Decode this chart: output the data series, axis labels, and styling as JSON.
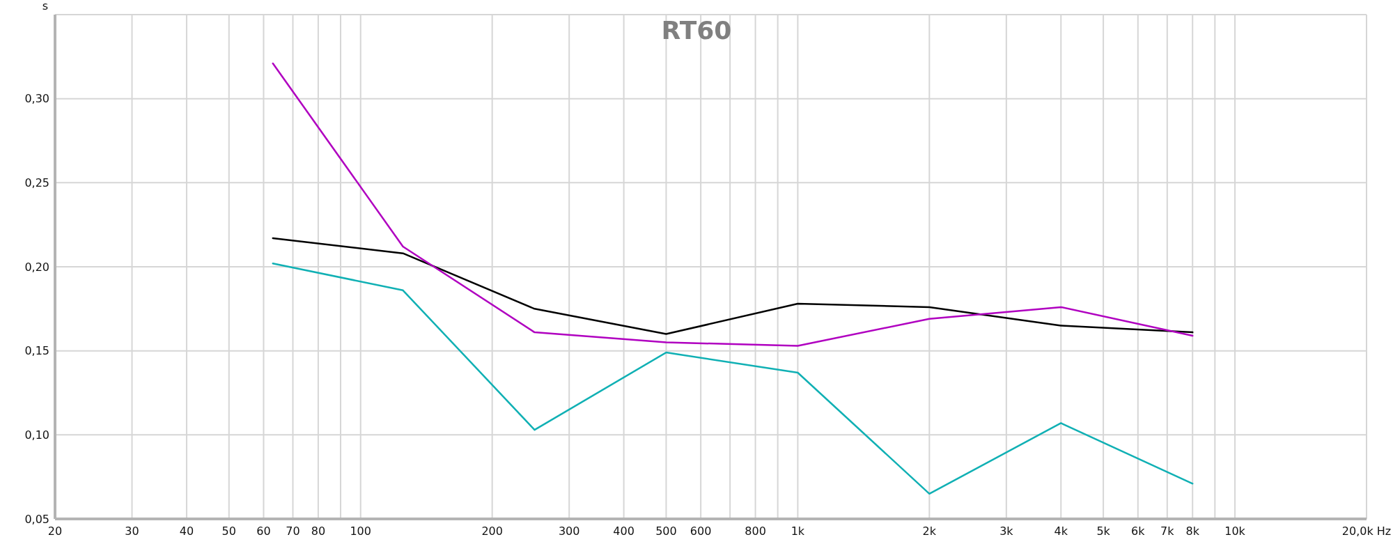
{
  "chart_data": {
    "type": "line",
    "title": "RT60",
    "ylabel": "s",
    "x": [
      63,
      125,
      250,
      500,
      1000,
      2000,
      4000,
      8000
    ],
    "series": [
      {
        "color": "#000000",
        "values": [
          0.217,
          0.208,
          0.175,
          0.16,
          0.178,
          0.176,
          0.165,
          0.161
        ]
      },
      {
        "color": "#10b0b4",
        "values": [
          0.202,
          0.186,
          0.103,
          0.149,
          0.137,
          0.065,
          0.107,
          0.071
        ]
      },
      {
        "color": "#b000c0",
        "values": [
          0.321,
          0.212,
          0.161,
          0.155,
          0.153,
          0.169,
          0.176,
          0.159
        ]
      }
    ],
    "log": "x",
    "xlim": [
      20,
      20000
    ],
    "xticks": [
      20,
      30,
      40,
      50,
      60,
      70,
      80,
      {
        "value": 90,
        "label": null
      },
      100,
      200,
      300,
      400,
      500,
      600,
      {
        "value": 700,
        "label": null
      },
      800,
      {
        "value": 900,
        "label": null
      },
      {
        "value": 1000,
        "label": "1k"
      },
      {
        "value": 2000,
        "label": "2k"
      },
      {
        "value": 3000,
        "label": "3k"
      },
      {
        "value": 4000,
        "label": "4k"
      },
      {
        "value": 5000,
        "label": "5k"
      },
      {
        "value": 6000,
        "label": "6k"
      },
      {
        "value": 7000,
        "label": "7k"
      },
      {
        "value": 8000,
        "label": "8k"
      },
      {
        "value": 9000,
        "label": null
      },
      {
        "value": 10000,
        "label": "10k"
      },
      {
        "value": 20000,
        "label": "20,0k Hz"
      }
    ],
    "ylim": [
      0.05,
      0.35
    ],
    "yticks": [
      {
        "value": 0.05,
        "label": "0,05"
      },
      {
        "value": 0.1,
        "label": "0,10"
      },
      {
        "value": 0.15,
        "label": "0,15"
      },
      {
        "value": 0.2,
        "label": "0,20"
      },
      {
        "value": 0.25,
        "label": "0,25"
      },
      {
        "value": 0.3,
        "label": "0,30"
      }
    ],
    "grid": true,
    "line_style": "solid"
  }
}
